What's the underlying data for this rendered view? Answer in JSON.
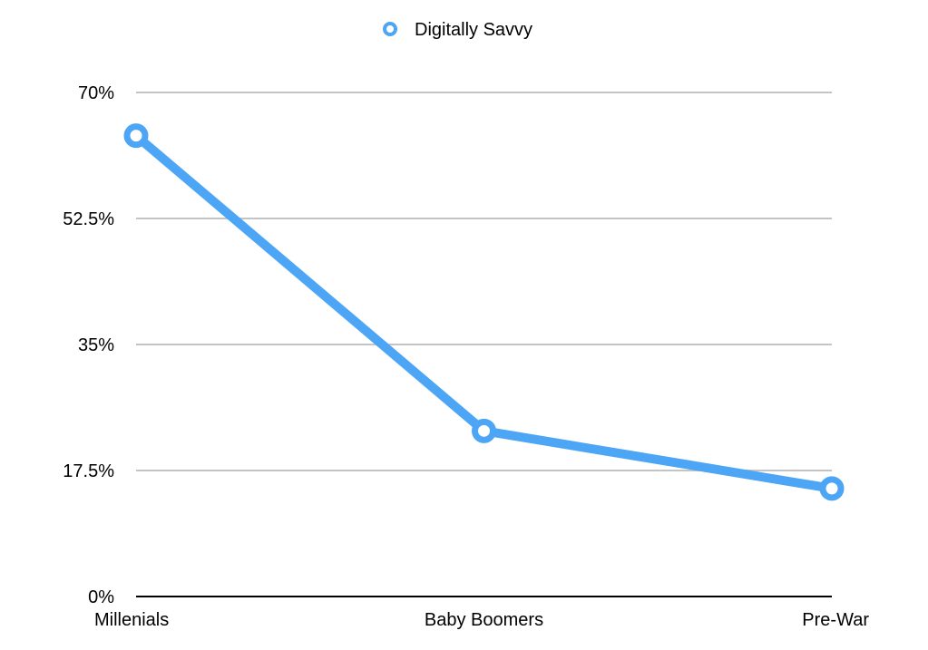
{
  "chart_data": {
    "type": "line",
    "categories": [
      "Millenials",
      "Baby Boomers",
      "Pre-War"
    ],
    "series": [
      {
        "name": "Digitally Savvy",
        "values": [
          64,
          23,
          15
        ],
        "color": "#4da6f5"
      }
    ],
    "ylim": [
      0,
      70
    ],
    "yticks": [
      0,
      17.5,
      35,
      52.5,
      70
    ],
    "ytick_labels": [
      "0%",
      "17.5%",
      "35%",
      "52.5%",
      "70%"
    ],
    "grid": true,
    "legend_position": "top-center",
    "xlabel": "",
    "ylabel": "",
    "title": ""
  }
}
